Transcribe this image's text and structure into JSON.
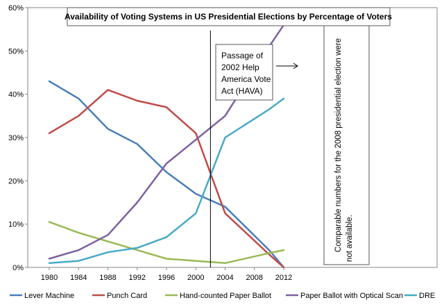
{
  "chart_data": {
    "type": "line",
    "title": "Availability of Voting Systems in US Presidential Elections by Percentage of Voters",
    "xlabel": "",
    "ylabel": "",
    "x": [
      1980,
      1984,
      1988,
      1992,
      1996,
      2000,
      2004,
      2008,
      2012
    ],
    "x_tick_labels": [
      "1980",
      "1984",
      "1988",
      "1992",
      "1996",
      "2000",
      "2004",
      "2008",
      "2012"
    ],
    "ylim": [
      0,
      60
    ],
    "y_tick_labels": [
      "0%",
      "10%",
      "20%",
      "30%",
      "40%",
      "50%",
      "60%"
    ],
    "y_tick_values": [
      0,
      10,
      20,
      30,
      40,
      50,
      60
    ],
    "grid": false,
    "legend_position": "bottom",
    "series": [
      {
        "name": "Lever Machine",
        "color": "#4a7ebb",
        "points": [
          [
            1980,
            43
          ],
          [
            1984,
            39
          ],
          [
            1988,
            32
          ],
          [
            1992,
            28.5
          ],
          [
            1996,
            22
          ],
          [
            2000,
            17
          ],
          [
            2004,
            14
          ],
          [
            2010,
            4
          ],
          [
            2012,
            0
          ]
        ]
      },
      {
        "name": "Punch Card",
        "color": "#be4b48",
        "points": [
          [
            1980,
            31
          ],
          [
            1984,
            35
          ],
          [
            1988,
            41
          ],
          [
            1992,
            38.5
          ],
          [
            1996,
            37
          ],
          [
            2000,
            31
          ],
          [
            2004,
            12.5
          ],
          [
            2010,
            3
          ],
          [
            2012,
            0
          ]
        ]
      },
      {
        "name": "Hand-counted Paper Ballot",
        "color": "#98b954",
        "points": [
          [
            1980,
            10.5
          ],
          [
            1984,
            8
          ],
          [
            1988,
            6
          ],
          [
            1992,
            4
          ],
          [
            1996,
            2
          ],
          [
            2000,
            1.5
          ],
          [
            2004,
            1
          ],
          [
            2010,
            3.3
          ],
          [
            2012,
            4
          ]
        ]
      },
      {
        "name": "Paper Ballot with Optical Scan",
        "color": "#7d60a0",
        "points": [
          [
            1980,
            2
          ],
          [
            1984,
            4
          ],
          [
            1988,
            7.5
          ],
          [
            1992,
            15
          ],
          [
            1996,
            24
          ],
          [
            2000,
            29.5
          ],
          [
            2004,
            35
          ],
          [
            2010,
            51
          ],
          [
            2012,
            56
          ]
        ]
      },
      {
        "name": "DRE",
        "color": "#46aac5",
        "points": [
          [
            1980,
            1
          ],
          [
            1984,
            1.5
          ],
          [
            1988,
            3.5
          ],
          [
            1992,
            4.5
          ],
          [
            1996,
            7
          ],
          [
            2000,
            12.5
          ],
          [
            2004,
            30
          ],
          [
            2010,
            36.5
          ],
          [
            2012,
            39
          ]
        ]
      }
    ],
    "annotations": {
      "hava_lines": [
        "Passage of",
        "2002 Help",
        "America Vote",
        "Act (HAVA)"
      ],
      "hava_year": 2002,
      "note_lines": [
        "Comparable numbers for the 2008 presidential election were",
        "not available."
      ]
    }
  }
}
